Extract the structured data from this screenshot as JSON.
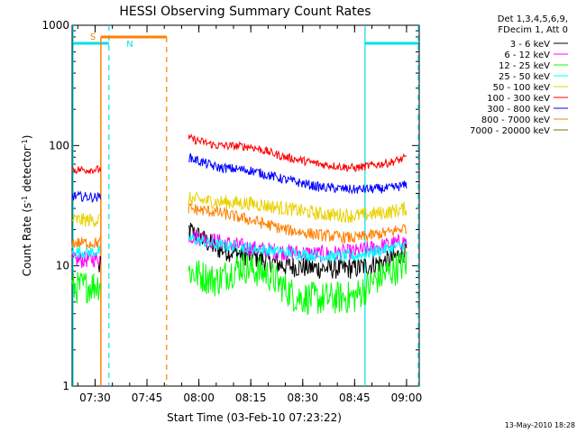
{
  "chart_data": {
    "type": "line",
    "title": "HESSI Observing Summary Count Rates",
    "xlabel": "Start Time (03-Feb-10 07:23:22)",
    "ylabel_main": "Count Rate (s",
    "ylabel_sup1": "-1",
    "ylabel_mid": " detector",
    "ylabel_sup2": "-1",
    "ylabel_end": ")",
    "yscale": "log",
    "ylim": [
      1,
      1000
    ],
    "xlim": [
      "07:23:22",
      "09:03:40"
    ],
    "x_ticks": [
      "07:30",
      "07:45",
      "08:00",
      "08:15",
      "08:30",
      "08:45",
      "09:00"
    ],
    "y_ticks": [
      1,
      10,
      100,
      1000
    ],
    "y_tick_labels": [
      "1",
      "10",
      "100",
      "1000"
    ],
    "legend_header": [
      "Det 1,3,4,5,6,9,",
      "FDecim 1, Att 0"
    ],
    "legend_position": "right",
    "series": [
      {
        "name": "3 - 6 keV",
        "color": "#000000",
        "x": [
          "07:23:22",
          "07:27:00",
          "07:31:00",
          "07:31:40",
          "07:54:40",
          "07:57:00",
          "08:05:00",
          "08:15:00",
          "08:25:00",
          "08:35:00",
          "08:45:00",
          "08:55:00",
          "09:00:00"
        ],
        "values": [
          null,
          null,
          9.5,
          9.8,
          null,
          20,
          14,
          12,
          10,
          9.5,
          9.5,
          11,
          13.5
        ]
      },
      {
        "name": "6 - 12 keV",
        "color": "#ff00ff",
        "x": [
          "07:23:22",
          "07:31:00",
          "07:31:40",
          "07:54:40",
          "07:57:00",
          "08:05:00",
          "08:15:00",
          "08:25:00",
          "08:35:00",
          "08:45:00",
          "08:55:00",
          "09:00:00"
        ],
        "values": [
          11,
          11.5,
          11.8,
          null,
          18,
          16,
          14,
          13,
          12.5,
          13,
          15,
          16
        ]
      },
      {
        "name": "12 - 25 keV",
        "color": "#00ff00",
        "x": [
          "07:23:22",
          "07:31:00",
          "07:31:40",
          "07:54:40",
          "07:57:00",
          "08:05:00",
          "08:12:00",
          "08:20:00",
          "08:28:00",
          "08:35:00",
          "08:45:00",
          "08:52:00",
          "09:00:00"
        ],
        "values": [
          6.5,
          7,
          7.5,
          null,
          9,
          7.5,
          10,
          8.5,
          5.5,
          5.3,
          5.5,
          8,
          10.5
        ]
      },
      {
        "name": "25 - 50 keV",
        "color": "#00ffff",
        "x": [
          "07:23:22",
          "07:31:00",
          "07:31:40",
          "07:54:40",
          "07:57:00",
          "08:05:00",
          "08:15:00",
          "08:25:00",
          "08:35:00",
          "08:45:00",
          "08:55:00",
          "09:00:00"
        ],
        "values": [
          13,
          13,
          13.5,
          null,
          17,
          15,
          14,
          13,
          12,
          12,
          14,
          15
        ]
      },
      {
        "name": "50 - 100 keV",
        "color": "#e8d200",
        "x": [
          "07:23:22",
          "07:31:00",
          "07:31:40",
          "07:54:40",
          "07:57:00",
          "08:05:00",
          "08:15:00",
          "08:25:00",
          "08:35:00",
          "08:45:00",
          "08:55:00",
          "09:00:00"
        ],
        "values": [
          24,
          24,
          25,
          null,
          36,
          34,
          33,
          30,
          27,
          26,
          28,
          30
        ]
      },
      {
        "name": "100 - 300 keV",
        "color": "#ff0000",
        "x": [
          "07:23:22",
          "07:31:00",
          "07:31:40",
          "07:54:40",
          "07:57:00",
          "08:05:00",
          "08:15:00",
          "08:25:00",
          "08:35:00",
          "08:45:00",
          "08:55:00",
          "09:00:00"
        ],
        "values": [
          63,
          63,
          64,
          null,
          115,
          100,
          98,
          80,
          70,
          65,
          72,
          79
        ]
      },
      {
        "name": "300 - 800 keV",
        "color": "#0000ff",
        "x": [
          "07:23:22",
          "07:31:00",
          "07:31:40",
          "07:54:40",
          "07:57:00",
          "08:05:00",
          "08:15:00",
          "08:25:00",
          "08:35:00",
          "08:45:00",
          "08:55:00",
          "09:00:00"
        ],
        "values": [
          38,
          37,
          38,
          null,
          80,
          66,
          62,
          52,
          45,
          43,
          44,
          47
        ]
      },
      {
        "name": "800 - 7000 keV",
        "color": "#ff8000",
        "x": [
          "07:23:22",
          "07:31:00",
          "07:31:40",
          "07:54:40",
          "07:57:00",
          "08:05:00",
          "08:15:00",
          "08:25:00",
          "08:35:00",
          "08:45:00",
          "08:55:00",
          "09:00:00"
        ],
        "values": [
          15.5,
          15.5,
          16,
          null,
          30,
          28,
          24,
          20,
          18,
          17,
          19,
          21
        ]
      },
      {
        "name": "7000 - 20000 keV",
        "color": "#8b6a14",
        "x": [],
        "values": []
      }
    ],
    "attenuator_label": "S",
    "attenuator_color": "#ff8000",
    "night_label": "N",
    "night_color": "#00e0e8"
  },
  "footer": {
    "date_stamp": "13-May-2010 18:28"
  }
}
